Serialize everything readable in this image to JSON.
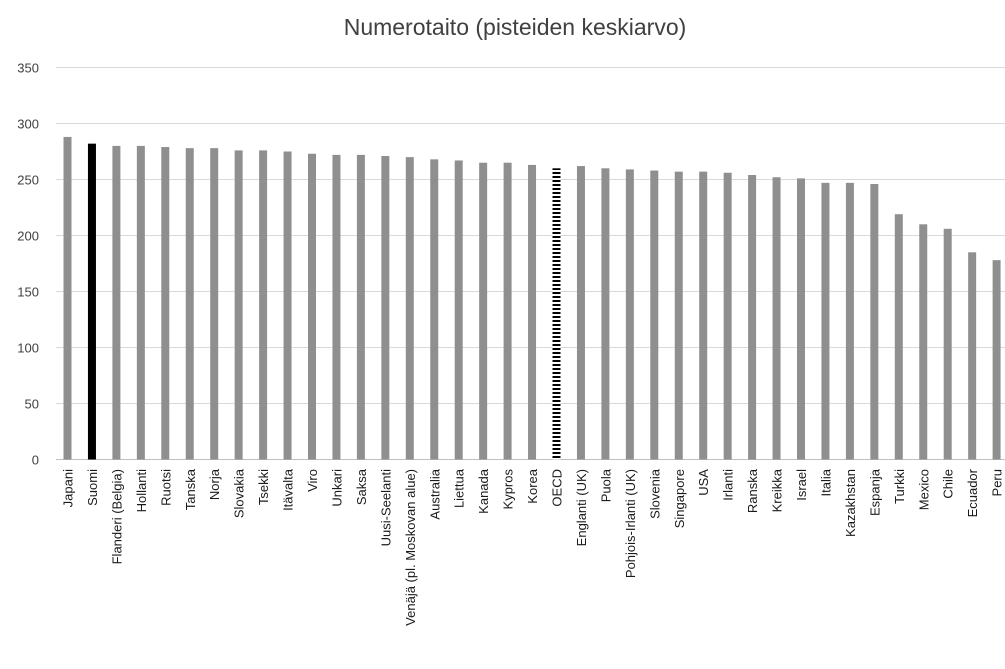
{
  "chart_data": {
    "type": "bar",
    "title": "Numerotaito (pisteiden keskiarvo)",
    "xlabel": "",
    "ylabel": "",
    "ylim": [
      0,
      350
    ],
    "yticks": [
      0,
      50,
      100,
      150,
      200,
      250,
      300,
      350
    ],
    "grid": true,
    "categories": [
      "Japani",
      "Suomi",
      "Flanderi (Belgia)",
      "Hollanti",
      "Ruotsi",
      "Tanska",
      "Norja",
      "Slovakia",
      "Tsekki",
      "Itävalta",
      "Viro",
      "Unkari",
      "Saksa",
      "Uusi-Seelanti",
      "Venäjä (pl. Moskovan alue)",
      "Australia",
      "Liettua",
      "Kanada",
      "Kypros",
      "Korea",
      "OECD",
      "Englanti (UK)",
      "Puola",
      "Pohjois-Irlanti (UK)",
      "Slovenia",
      "Singapore",
      "USA",
      "Irlanti",
      "Ranska",
      "Kreikka",
      "Israel",
      "Italia",
      "Kazakhstan",
      "Espanja",
      "Turkki",
      "Mexico",
      "Chile",
      "Ecuador",
      "Peru"
    ],
    "values": [
      288,
      282,
      280,
      280,
      279,
      278,
      278,
      276,
      276,
      275,
      273,
      272,
      272,
      271,
      270,
      268,
      267,
      265,
      265,
      263,
      260,
      262,
      260,
      259,
      258,
      257,
      257,
      256,
      254,
      252,
      251,
      247,
      247,
      246,
      219,
      210,
      206,
      185,
      178
    ],
    "colors": {
      "default": "#8f8f8f",
      "highlight": "#000000",
      "average_pattern": "#000000",
      "grid": "#d9d9d9",
      "axis": "#bfbfbf"
    },
    "highlight_category": "Suomi",
    "average_category": "OECD"
  }
}
